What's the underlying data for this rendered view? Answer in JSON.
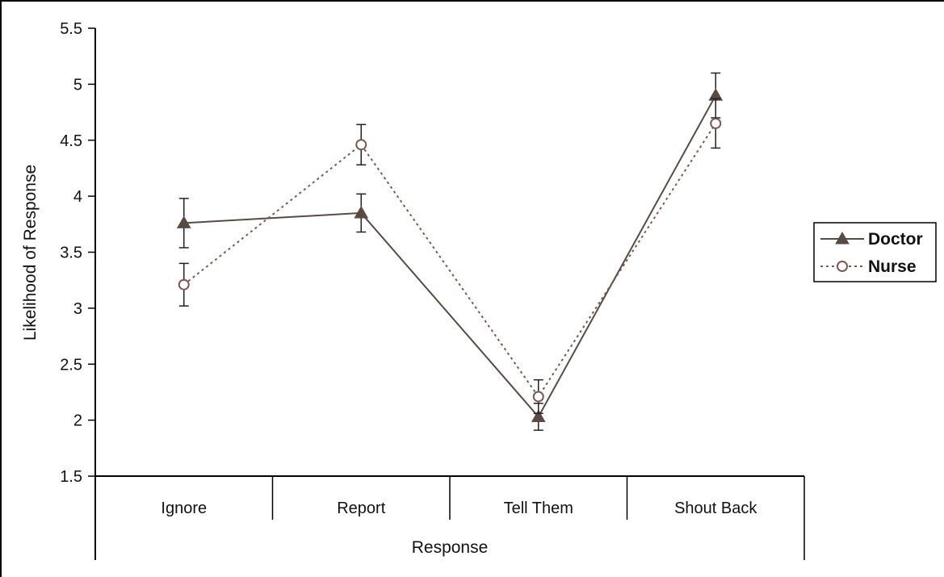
{
  "chart_data": {
    "type": "line",
    "title": "",
    "xlabel": "Response",
    "ylabel": "Likelihood of Response",
    "categories": [
      "Ignore",
      "Report",
      "Tell Them",
      "Shout Back"
    ],
    "ylim": [
      1.5,
      5.5
    ],
    "yticks": [
      "1.5",
      "2",
      "2.5",
      "3",
      "3.5",
      "4",
      "4.5",
      "5",
      "5.5"
    ],
    "ytick_values": [
      1.5,
      2,
      2.5,
      3,
      3.5,
      4,
      4.5,
      5,
      5.5
    ],
    "grid": false,
    "legend_position": "right",
    "series": [
      {
        "name": "Doctor",
        "values": [
          3.76,
          3.85,
          2.03,
          4.9
        ],
        "error": [
          0.22,
          0.17,
          0.12,
          0.2
        ],
        "marker": "triangle-filled",
        "line": "solid",
        "color": "#5a4a44"
      },
      {
        "name": "Nurse",
        "values": [
          3.21,
          4.46,
          2.21,
          4.65
        ],
        "error": [
          0.19,
          0.18,
          0.15,
          0.22
        ],
        "marker": "circle-open",
        "line": "dotted",
        "color": "#7a5a50"
      }
    ]
  }
}
